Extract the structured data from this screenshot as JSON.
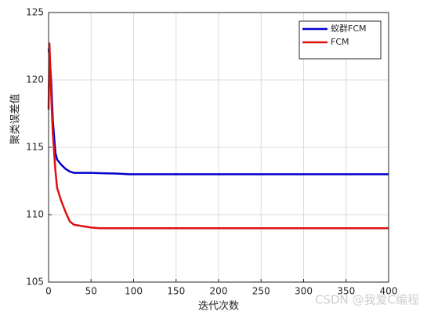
{
  "chart_data": {
    "type": "line",
    "x_label": "迭代次数",
    "y_label": "聚类误差值",
    "x": [
      0,
      1,
      2,
      3,
      5,
      8,
      10,
      15,
      20,
      25,
      30,
      40,
      50,
      60,
      80,
      95,
      200,
      400
    ],
    "series": [
      {
        "name": "蚁群FCM",
        "color": "#0000cc",
        "values": [
          122.3,
          121.8,
          121,
          120,
          117,
          114.6,
          114.1,
          113.7,
          113.4,
          113.2,
          113.1,
          113.1,
          113.1,
          113.08,
          113.05,
          113.0,
          113.0,
          113.0
        ]
      },
      {
        "name": "FCM",
        "color": "#e01010",
        "values": [
          117.8,
          122.7,
          121,
          119,
          116,
          113.3,
          112,
          111,
          110.2,
          109.5,
          109.25,
          109.15,
          109.05,
          109,
          109,
          109,
          109,
          109
        ]
      }
    ],
    "xlim": [
      0,
      400
    ],
    "xticks": [
      0,
      50,
      100,
      150,
      200,
      250,
      300,
      350,
      400
    ],
    "ylim": [
      105,
      125
    ],
    "yticks": [
      105,
      110,
      115,
      120,
      125
    ],
    "grid": true,
    "legend": "northeast",
    "watermark": "CSDN @我爱C编程"
  }
}
